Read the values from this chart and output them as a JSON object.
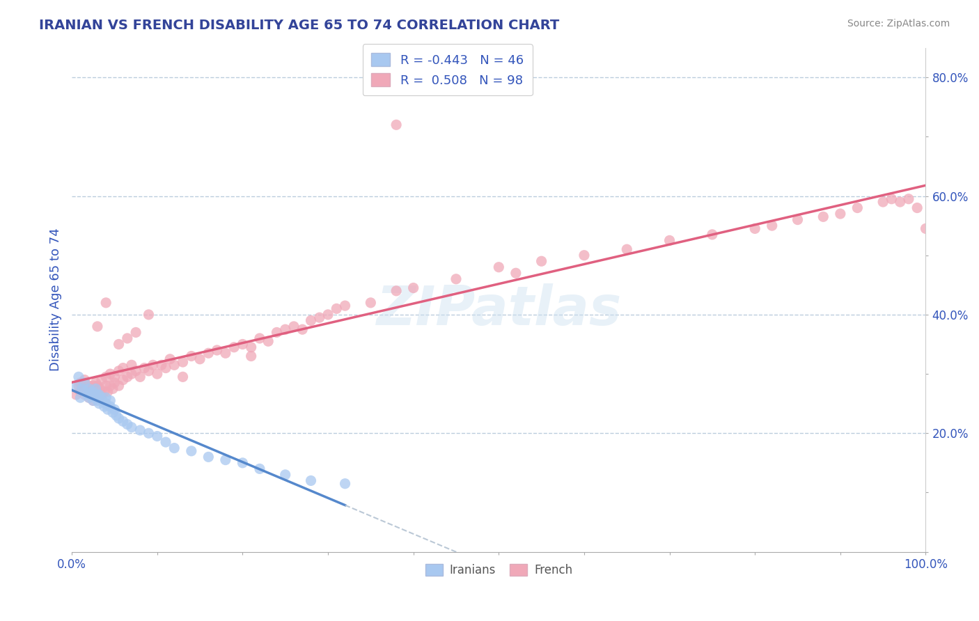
{
  "title": "IRANIAN VS FRENCH DISABILITY AGE 65 TO 74 CORRELATION CHART",
  "source_text": "Source: ZipAtlas.com",
  "ylabel": "Disability Age 65 to 74",
  "xlim": [
    0.0,
    1.0
  ],
  "ylim": [
    0.0,
    0.85
  ],
  "ytick_vals": [
    0.0,
    0.1,
    0.2,
    0.3,
    0.4,
    0.5,
    0.6,
    0.7,
    0.8
  ],
  "ytick_labels": [
    "",
    "",
    "20.0%",
    "",
    "40.0%",
    "",
    "60.0%",
    "",
    "80.0%"
  ],
  "xtick_vals": [
    0.0,
    0.1,
    0.2,
    0.3,
    0.4,
    0.5,
    0.6,
    0.7,
    0.8,
    0.9,
    1.0
  ],
  "xtick_labels": [
    "0.0%",
    "",
    "",
    "",
    "",
    "",
    "",
    "",
    "",
    "",
    "100.0%"
  ],
  "iranian_color": "#a8c8f0",
  "french_color": "#f0a8b8",
  "iranian_line_color": "#5588cc",
  "french_line_color": "#e06080",
  "legend_text_color": "#3355bb",
  "background_color": "#ffffff",
  "grid_color": "#bbccdd",
  "watermark": "ZIPatlas",
  "R_iranian": -0.443,
  "N_iranian": 46,
  "R_french": 0.508,
  "N_french": 98,
  "iranian_x": [
    0.005,
    0.008,
    0.01,
    0.012,
    0.015,
    0.015,
    0.018,
    0.02,
    0.02,
    0.022,
    0.025,
    0.025,
    0.028,
    0.028,
    0.03,
    0.03,
    0.032,
    0.032,
    0.035,
    0.035,
    0.038,
    0.04,
    0.04,
    0.042,
    0.045,
    0.045,
    0.048,
    0.05,
    0.052,
    0.055,
    0.06,
    0.065,
    0.07,
    0.08,
    0.09,
    0.1,
    0.11,
    0.12,
    0.14,
    0.16,
    0.18,
    0.2,
    0.22,
    0.25,
    0.28,
    0.32
  ],
  "iranian_y": [
    0.28,
    0.295,
    0.26,
    0.275,
    0.27,
    0.285,
    0.265,
    0.26,
    0.275,
    0.27,
    0.255,
    0.27,
    0.26,
    0.275,
    0.255,
    0.265,
    0.25,
    0.265,
    0.255,
    0.26,
    0.245,
    0.25,
    0.26,
    0.24,
    0.245,
    0.255,
    0.235,
    0.24,
    0.23,
    0.225,
    0.22,
    0.215,
    0.21,
    0.205,
    0.2,
    0.195,
    0.185,
    0.175,
    0.17,
    0.16,
    0.155,
    0.15,
    0.14,
    0.13,
    0.12,
    0.115
  ],
  "french_x": [
    0.005,
    0.008,
    0.01,
    0.01,
    0.012,
    0.015,
    0.015,
    0.018,
    0.02,
    0.02,
    0.022,
    0.025,
    0.025,
    0.028,
    0.028,
    0.03,
    0.03,
    0.032,
    0.033,
    0.035,
    0.035,
    0.038,
    0.04,
    0.04,
    0.042,
    0.045,
    0.045,
    0.048,
    0.05,
    0.05,
    0.055,
    0.055,
    0.06,
    0.06,
    0.065,
    0.07,
    0.07,
    0.075,
    0.08,
    0.085,
    0.09,
    0.095,
    0.1,
    0.105,
    0.11,
    0.115,
    0.12,
    0.13,
    0.14,
    0.15,
    0.16,
    0.17,
    0.18,
    0.19,
    0.2,
    0.21,
    0.22,
    0.23,
    0.24,
    0.25,
    0.26,
    0.27,
    0.28,
    0.29,
    0.3,
    0.31,
    0.32,
    0.35,
    0.38,
    0.4,
    0.45,
    0.5,
    0.52,
    0.55,
    0.6,
    0.65,
    0.7,
    0.75,
    0.8,
    0.82,
    0.85,
    0.88,
    0.9,
    0.92,
    0.95,
    0.96,
    0.97,
    0.98,
    0.99,
    1.0,
    0.03,
    0.04,
    0.055,
    0.065,
    0.075,
    0.09,
    0.13,
    0.21
  ],
  "french_y": [
    0.265,
    0.28,
    0.27,
    0.285,
    0.275,
    0.265,
    0.29,
    0.275,
    0.26,
    0.28,
    0.27,
    0.255,
    0.28,
    0.265,
    0.285,
    0.27,
    0.28,
    0.26,
    0.275,
    0.265,
    0.29,
    0.27,
    0.28,
    0.295,
    0.27,
    0.28,
    0.3,
    0.275,
    0.285,
    0.295,
    0.28,
    0.305,
    0.29,
    0.31,
    0.295,
    0.3,
    0.315,
    0.305,
    0.295,
    0.31,
    0.305,
    0.315,
    0.3,
    0.315,
    0.31,
    0.325,
    0.315,
    0.32,
    0.33,
    0.325,
    0.335,
    0.34,
    0.335,
    0.345,
    0.35,
    0.345,
    0.36,
    0.355,
    0.37,
    0.375,
    0.38,
    0.375,
    0.39,
    0.395,
    0.4,
    0.41,
    0.415,
    0.42,
    0.44,
    0.445,
    0.46,
    0.48,
    0.47,
    0.49,
    0.5,
    0.51,
    0.525,
    0.535,
    0.545,
    0.55,
    0.56,
    0.565,
    0.57,
    0.58,
    0.59,
    0.595,
    0.59,
    0.595,
    0.58,
    0.545,
    0.38,
    0.42,
    0.35,
    0.36,
    0.37,
    0.4,
    0.295,
    0.33
  ],
  "french_outlier_x": [
    0.38
  ],
  "french_outlier_y": [
    0.72
  ]
}
